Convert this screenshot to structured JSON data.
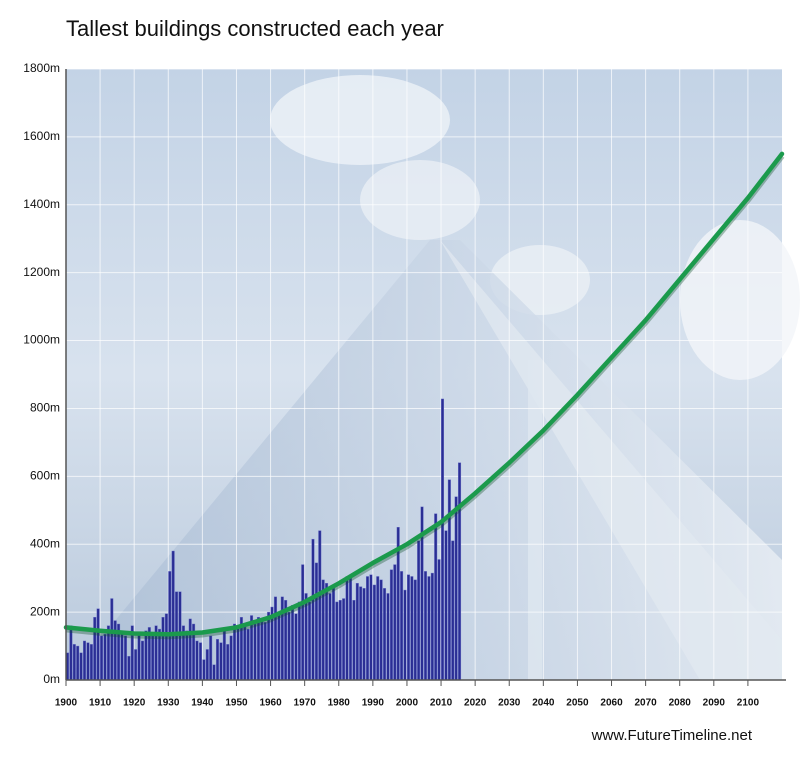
{
  "chart_data": {
    "type": "bar",
    "title": "Tallest buildings constructed each year",
    "source": "www.FutureTimeline.net",
    "color": "#2a2e94",
    "x": [
      1900,
      1901,
      1902,
      1903,
      1904,
      1905,
      1906,
      1907,
      1908,
      1909,
      1910,
      1911,
      1912,
      1913,
      1914,
      1915,
      1916,
      1917,
      1918,
      1919,
      1920,
      1921,
      1922,
      1923,
      1924,
      1925,
      1926,
      1927,
      1928,
      1929,
      1930,
      1931,
      1932,
      1933,
      1934,
      1935,
      1936,
      1937,
      1938,
      1939,
      1940,
      1941,
      1942,
      1943,
      1944,
      1945,
      1946,
      1947,
      1948,
      1949,
      1950,
      1951,
      1952,
      1953,
      1954,
      1955,
      1956,
      1957,
      1958,
      1959,
      1960,
      1961,
      1962,
      1963,
      1964,
      1965,
      1966,
      1967,
      1968,
      1969,
      1970,
      1971,
      1972,
      1973,
      1974,
      1975,
      1976,
      1977,
      1978,
      1979,
      1980,
      1981,
      1982,
      1983,
      1984,
      1985,
      1986,
      1987,
      1988,
      1989,
      1990,
      1991,
      1992,
      1993,
      1994,
      1995,
      1996,
      1997,
      1998,
      1999,
      2000,
      2001,
      2002,
      2003,
      2004,
      2005,
      2006,
      2007,
      2008,
      2009,
      2010,
      2011,
      2012,
      2013,
      2014,
      2015
    ],
    "values": [
      80,
      160,
      105,
      100,
      80,
      115,
      110,
      105,
      185,
      210,
      130,
      135,
      160,
      240,
      175,
      165,
      140,
      130,
      70,
      160,
      90,
      140,
      115,
      145,
      155,
      140,
      160,
      150,
      185,
      195,
      320,
      380,
      260,
      260,
      160,
      145,
      180,
      165,
      115,
      110,
      60,
      90,
      130,
      45,
      120,
      110,
      150,
      105,
      130,
      165,
      155,
      185,
      160,
      150,
      190,
      165,
      185,
      175,
      170,
      200,
      215,
      245,
      200,
      245,
      235,
      200,
      220,
      195,
      230,
      340,
      255,
      230,
      415,
      345,
      440,
      295,
      285,
      255,
      280,
      230,
      235,
      240,
      305,
      300,
      235,
      285,
      275,
      270,
      305,
      310,
      280,
      305,
      295,
      270,
      255,
      325,
      340,
      450,
      320,
      265,
      310,
      305,
      295,
      410,
      510,
      320,
      305,
      315,
      490,
      355,
      828,
      440,
      590,
      410,
      540,
      640
    ],
    "trend": {
      "color": "#1b9a4c",
      "x": [
        1900,
        1910,
        1920,
        1930,
        1940,
        1950,
        1960,
        1970,
        1980,
        1990,
        2000,
        2010,
        2020,
        2030,
        2040,
        2050,
        2060,
        2070,
        2080,
        2090,
        2100,
        2110
      ],
      "values": [
        155,
        145,
        137,
        135,
        140,
        155,
        185,
        230,
        285,
        345,
        400,
        465,
        550,
        640,
        735,
        840,
        950,
        1060,
        1180,
        1300,
        1420,
        1550
      ]
    },
    "xlim": [
      1900,
      2110
    ],
    "xticks": [
      1900,
      1910,
      1920,
      1930,
      1940,
      1950,
      1960,
      1970,
      1980,
      1990,
      2000,
      2010,
      2020,
      2030,
      2040,
      2050,
      2060,
      2070,
      2080,
      2090,
      2100
    ],
    "ylim": [
      0,
      1800
    ],
    "yticks": [
      {
        "value": 0,
        "label": "0m"
      },
      {
        "value": 200,
        "label": "200m"
      },
      {
        "value": 400,
        "label": "400m"
      },
      {
        "value": 600,
        "label": "600m"
      },
      {
        "value": 800,
        "label": "800m"
      },
      {
        "value": 1000,
        "label": "1000m"
      },
      {
        "value": 1200,
        "label": "1200m"
      },
      {
        "value": 1400,
        "label": "1400m"
      },
      {
        "value": 1600,
        "label": "1600m"
      },
      {
        "value": 1800,
        "label": "1800m"
      }
    ],
    "grid": true
  }
}
